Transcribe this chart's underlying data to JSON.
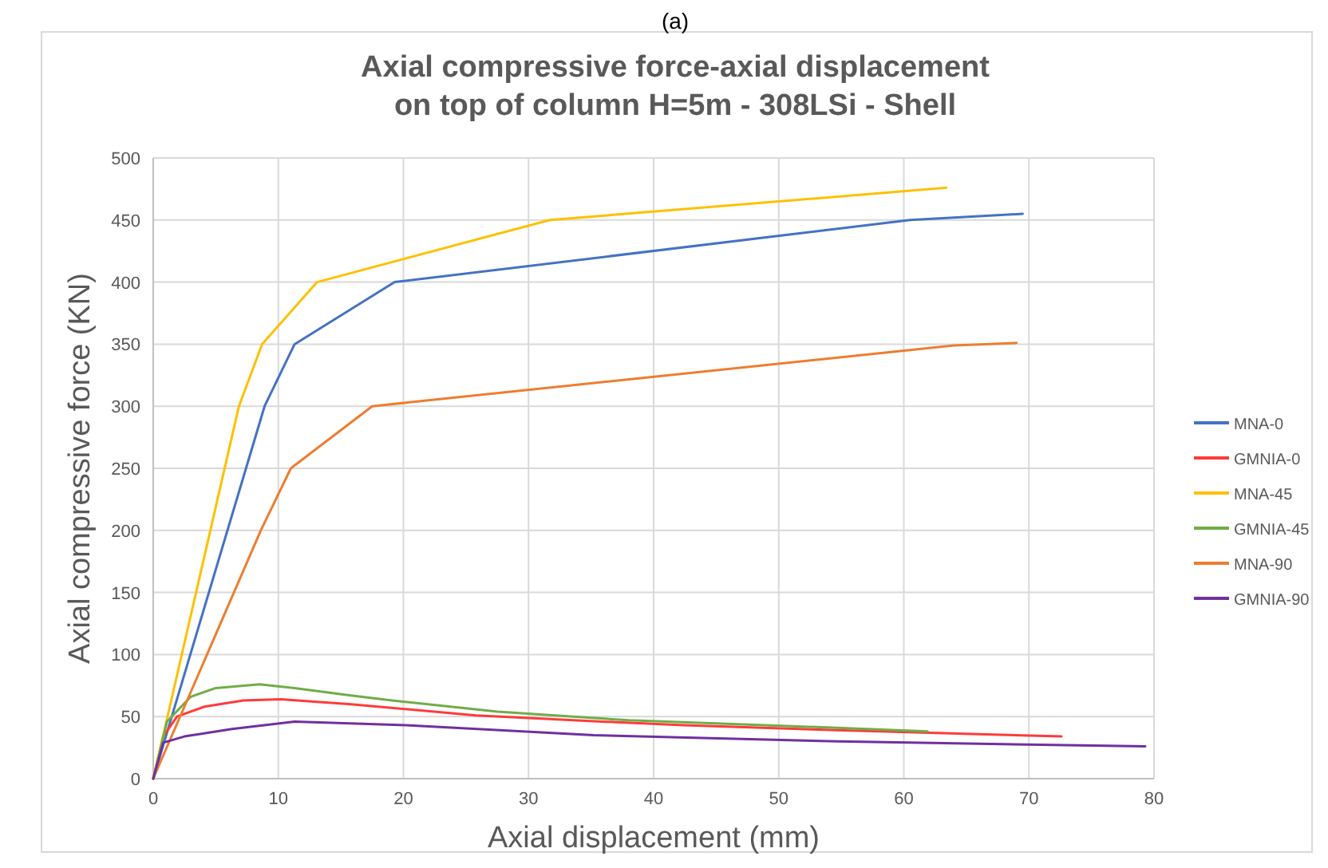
{
  "chart_data": {
    "type": "line",
    "title": "Axial compressive force-axial displacement\non top of column H=5m - 308LSi - Shell",
    "xlabel": "Axial displacement (mm)",
    "ylabel": "Axial compressive force (KN)",
    "annotations": [
      "(a)"
    ],
    "xlim": [
      0,
      80
    ],
    "xticks": [
      0,
      10,
      20,
      30,
      40,
      50,
      60,
      70,
      80
    ],
    "ylim": [
      0,
      500
    ],
    "yticks": [
      0,
      50,
      100,
      150,
      200,
      250,
      300,
      350,
      400,
      450,
      500
    ],
    "grid": true,
    "legend": "right",
    "marker": "none",
    "line_style": "solid",
    "series": [
      {
        "name": "MNA-0",
        "color": "#4472c4",
        "x": [
          0,
          8.9,
          11.3,
          19.3,
          60.5,
          69.5
        ],
        "values": [
          0,
          300,
          350,
          400,
          450,
          455
        ]
      },
      {
        "name": "GMNIA-0",
        "color": "#ff3b3b",
        "x": [
          0,
          0.8,
          1.9,
          4.1,
          7.2,
          10.2,
          15.8,
          25.8,
          33.6,
          42.4,
          54.7,
          72.6
        ],
        "values": [
          0,
          34,
          50,
          58,
          63,
          64,
          60,
          51,
          47,
          43,
          39,
          34
        ]
      },
      {
        "name": "MNA-45",
        "color": "#ffc000",
        "x": [
          0,
          6.85,
          8.7,
          13.1,
          31.7,
          63.4
        ],
        "values": [
          0,
          300,
          350,
          400,
          450,
          476
        ]
      },
      {
        "name": "GMNIA-45",
        "color": "#70ad47",
        "x": [
          0,
          1.1,
          3,
          5,
          8.5,
          11.3,
          15.8,
          19.1,
          27.5,
          38,
          51.9,
          61.9
        ],
        "values": [
          0,
          46,
          66,
          73,
          76,
          73,
          67,
          63,
          54,
          47,
          42,
          38
        ]
      },
      {
        "name": "MNA-90",
        "color": "#ed7d31",
        "x": [
          0,
          8.6,
          11,
          17.5,
          64,
          69
        ],
        "values": [
          0,
          200,
          250,
          300,
          349,
          351
        ]
      },
      {
        "name": "GMNIA-90",
        "color": "#7030a0",
        "x": [
          0,
          0.8,
          2.5,
          6.3,
          11.3,
          20.2,
          35.2,
          54.7,
          79.3
        ],
        "values": [
          0,
          29,
          34,
          40,
          46,
          43,
          35,
          30,
          26
        ]
      }
    ]
  }
}
